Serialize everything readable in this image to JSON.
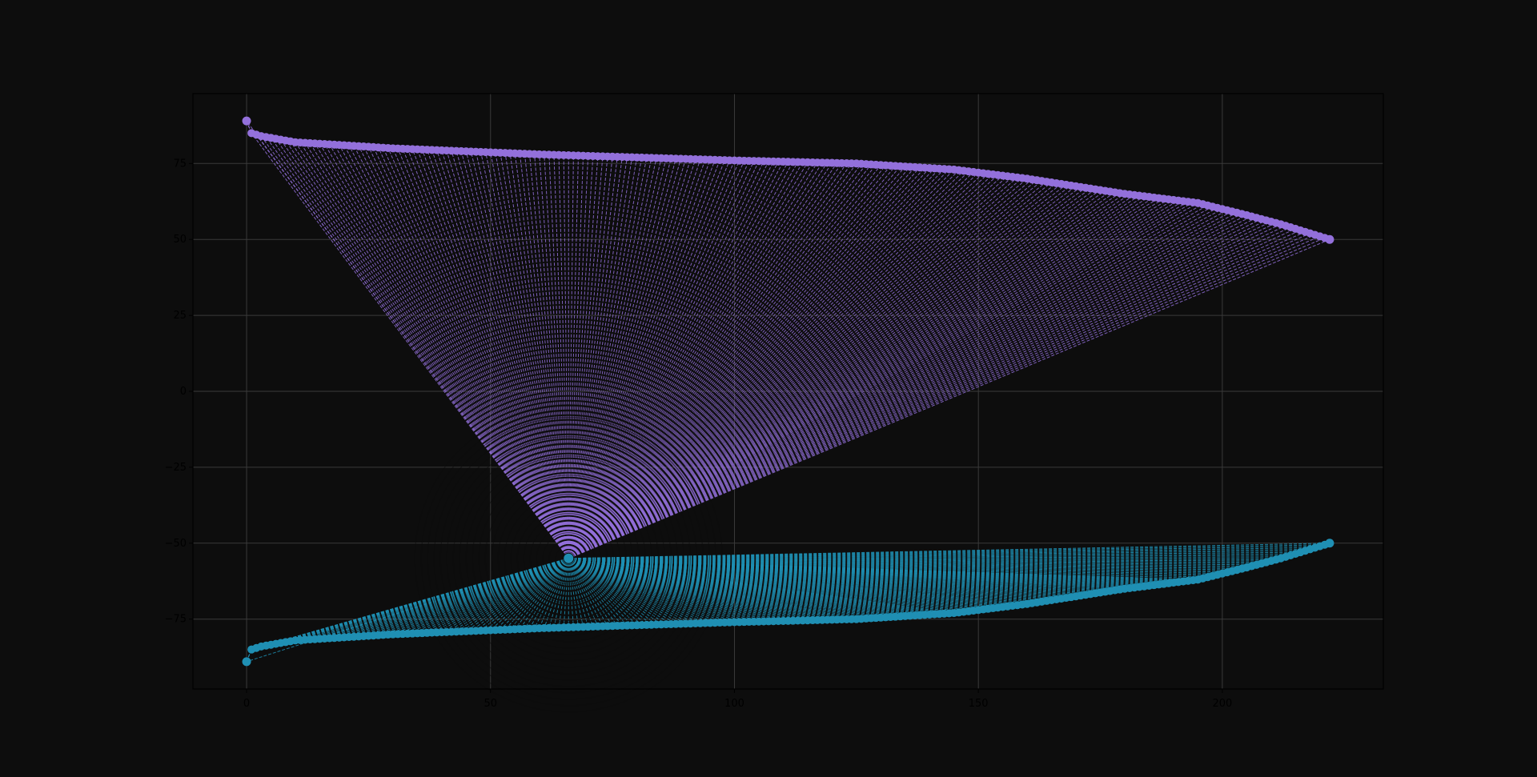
{
  "figure": {
    "background": "#0d0d0d"
  },
  "chart_data": {
    "type": "scatter",
    "title": "",
    "xlabel": "",
    "ylabel": "",
    "xlim": [
      -11,
      233
    ],
    "ylim": [
      -98,
      98
    ],
    "grid": true,
    "legend": "none",
    "x_ticks": [
      {
        "value": 0,
        "label": "0"
      },
      {
        "value": 50,
        "label": "50"
      },
      {
        "value": 100,
        "label": "100"
      },
      {
        "value": 150,
        "label": "150"
      },
      {
        "value": 200,
        "label": "200"
      }
    ],
    "y_ticks": [
      {
        "value": 75,
        "label": "75"
      },
      {
        "value": 50,
        "label": "50"
      },
      {
        "value": 25,
        "label": "25"
      },
      {
        "value": 0,
        "label": "0"
      },
      {
        "value": -25,
        "label": "−25"
      },
      {
        "value": -50,
        "label": "−50"
      },
      {
        "value": -75,
        "label": "−75"
      }
    ],
    "x_range": [
      0,
      222
    ],
    "hub": {
      "x": 66,
      "y": -55,
      "color": "#1f8fb3"
    },
    "series": [
      {
        "color": "#9370db",
        "profile": [
          [
            0,
            89
          ],
          [
            1,
            85
          ],
          [
            3,
            84
          ],
          [
            10,
            82
          ],
          [
            30,
            80
          ],
          [
            60,
            78
          ],
          [
            100,
            76
          ],
          [
            125,
            75
          ],
          [
            145,
            73
          ],
          [
            160,
            70
          ],
          [
            180,
            65
          ],
          [
            195,
            62
          ],
          [
            205,
            58
          ],
          [
            212,
            55
          ],
          [
            222,
            50
          ]
        ]
      },
      {
        "color": "#1f8fb3",
        "profile": [
          [
            0,
            -89
          ],
          [
            1,
            -85
          ],
          [
            3,
            -84
          ],
          [
            10,
            -82
          ],
          [
            30,
            -80
          ],
          [
            60,
            -78
          ],
          [
            100,
            -76
          ],
          [
            125,
            -75
          ],
          [
            145,
            -73
          ],
          [
            160,
            -70
          ],
          [
            180,
            -65
          ],
          [
            195,
            -62
          ],
          [
            205,
            -58
          ],
          [
            212,
            -55
          ],
          [
            222,
            -50
          ]
        ]
      }
    ],
    "colors": {
      "grid": "#3a3a3a",
      "spine": "#000000",
      "tick_label": "#000000",
      "plot_background": "#0d0d0d"
    }
  }
}
